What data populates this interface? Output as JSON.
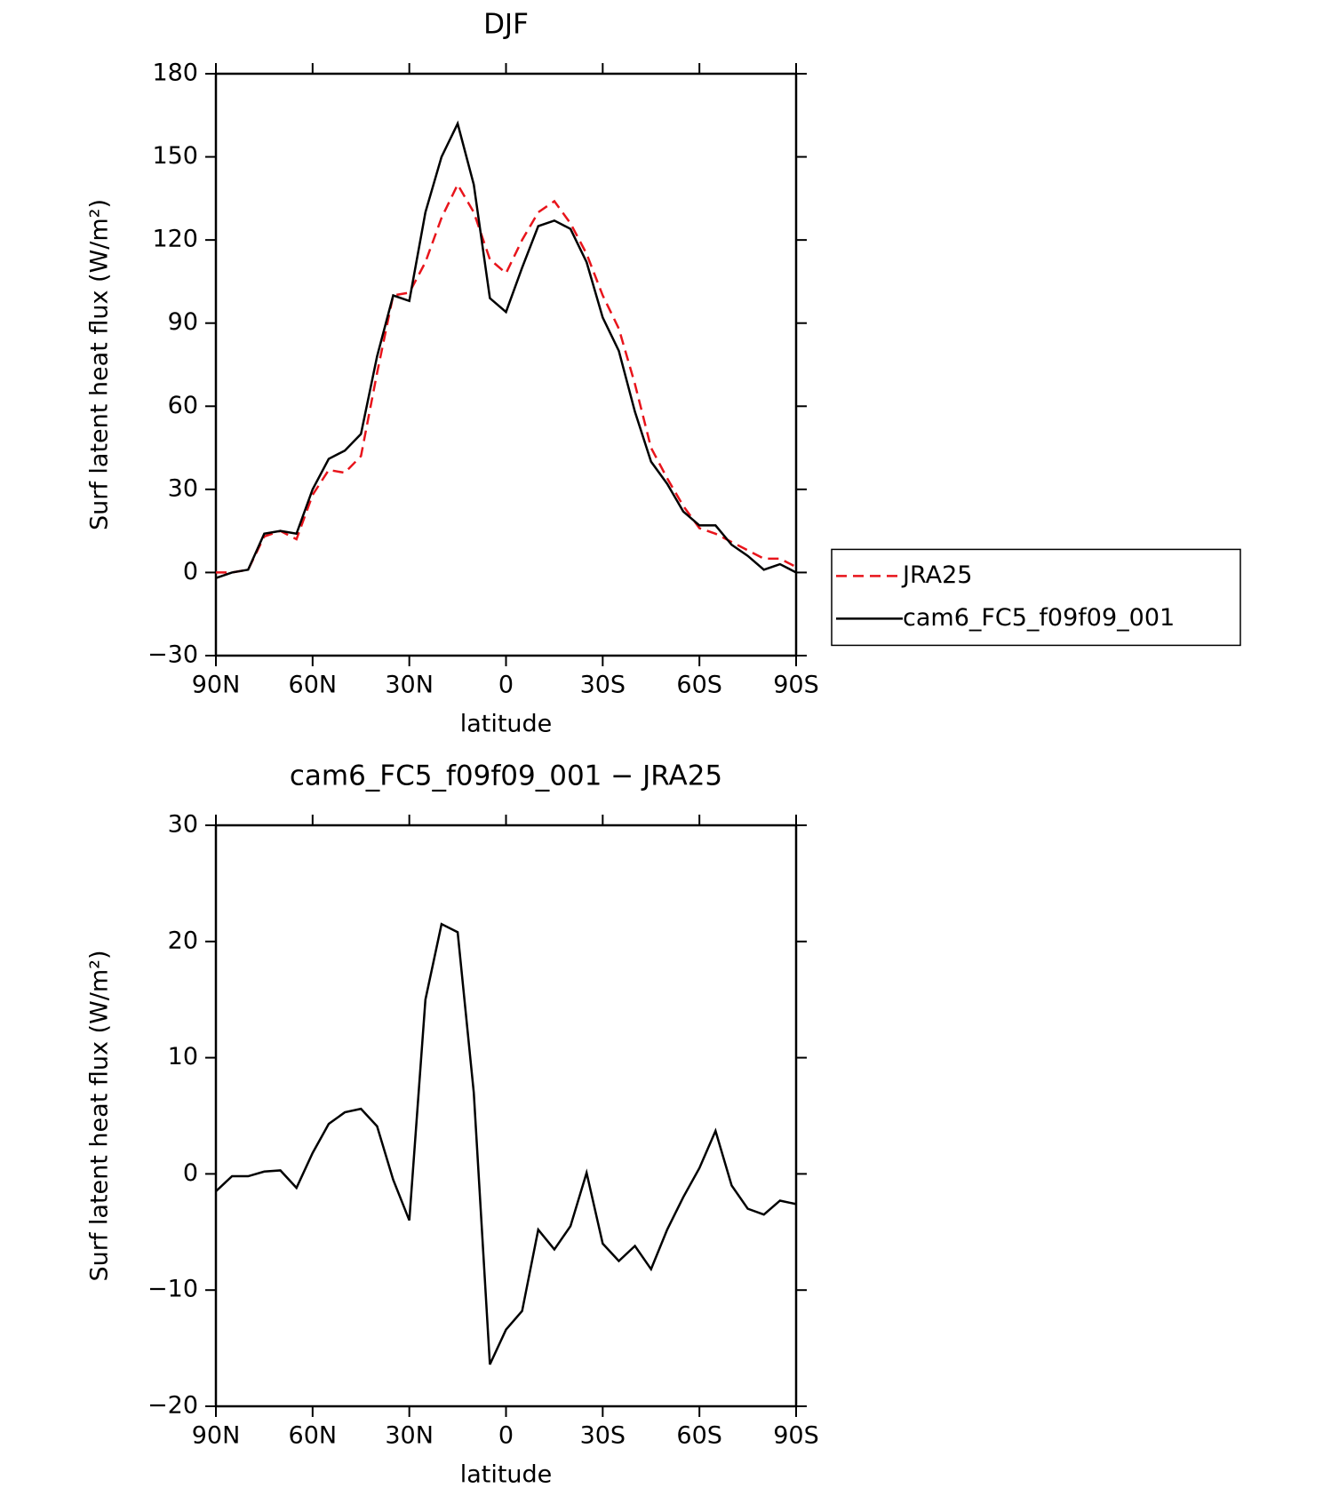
{
  "chart_data": [
    {
      "type": "line",
      "title": "DJF",
      "x_label": "latitude",
      "y_label": "Surf latent heat flux (W/m²)",
      "x": [
        90,
        85,
        80,
        75,
        70,
        65,
        60,
        55,
        50,
        45,
        40,
        35,
        30,
        25,
        20,
        15,
        10,
        5,
        0,
        -5,
        -10,
        -15,
        -20,
        -25,
        -30,
        -35,
        -40,
        -45,
        -50,
        -55,
        -60,
        -65,
        -70,
        -75,
        -80,
        -85,
        -90
      ],
      "series": [
        {
          "name": "JRA25",
          "color": "#e8141b",
          "dashed": true,
          "values": [
            0,
            0,
            1,
            13,
            15,
            12,
            28,
            37,
            36,
            42,
            72,
            100,
            101,
            112,
            128,
            140,
            130,
            113,
            108,
            120,
            130,
            134,
            126,
            115,
            100,
            88,
            68,
            45,
            34,
            24,
            16,
            14,
            11,
            8,
            5,
            5,
            2
          ]
        },
        {
          "name": "cam6_FC5_f09f09_001",
          "color": "#000000",
          "dashed": false,
          "values": [
            -2,
            0,
            1,
            14,
            15,
            14,
            30,
            41,
            44,
            50,
            78,
            100,
            98,
            130,
            150,
            162,
            140,
            99,
            94,
            110,
            125,
            127,
            124,
            112,
            92,
            80,
            58,
            40,
            32,
            22,
            17,
            17,
            10,
            6,
            1,
            3,
            0
          ]
        }
      ],
      "xlim": [
        90,
        -90
      ],
      "xticks": [
        {
          "value": 90,
          "label": "90N"
        },
        {
          "value": 60,
          "label": "60N"
        },
        {
          "value": 30,
          "label": "30N"
        },
        0,
        {
          "value": -30,
          "label": "30S"
        },
        {
          "value": -60,
          "label": "60S"
        },
        {
          "value": -90,
          "label": "90S"
        }
      ],
      "ylim": [
        -30,
        180
      ],
      "yticks": [
        {
          "value": -30,
          "label": "−30"
        },
        0,
        30,
        60,
        90,
        120,
        150,
        180
      ],
      "legend": "outside-right"
    },
    {
      "type": "line",
      "title": "cam6_FC5_f09f09_001 − JRA25",
      "x_label": "latitude",
      "y_label": "Surf latent heat flux (W/m²)",
      "x": [
        90,
        85,
        80,
        75,
        70,
        65,
        60,
        55,
        50,
        45,
        40,
        35,
        30,
        25,
        20,
        15,
        10,
        5,
        0,
        -5,
        -10,
        -15,
        -20,
        -25,
        -30,
        -35,
        -40,
        -45,
        -50,
        -55,
        -60,
        -65,
        -70,
        -75,
        -80,
        -85,
        -90
      ],
      "series": [
        {
          "color": "#000000",
          "dashed": false,
          "values": [
            -1.5,
            -0.2,
            -0.2,
            0.2,
            0.3,
            -1.2,
            1.8,
            4.3,
            5.3,
            5.6,
            4.1,
            -0.5,
            -4,
            15,
            21.5,
            20.8,
            7,
            -16.4,
            -13.4,
            -11.8,
            -4.8,
            -6.5,
            -4.5,
            0.1,
            -6,
            -7.5,
            -6.2,
            -8.2,
            -4.8,
            -2,
            0.5,
            3.7,
            -1,
            -3,
            -3.5,
            -2.3,
            -2.6
          ]
        }
      ],
      "xlim": [
        90,
        -90
      ],
      "xticks": [
        {
          "value": 90,
          "label": "90N"
        },
        {
          "value": 60,
          "label": "60N"
        },
        {
          "value": 30,
          "label": "30N"
        },
        0,
        {
          "value": -30,
          "label": "30S"
        },
        {
          "value": -60,
          "label": "60S"
        },
        {
          "value": -90,
          "label": "90S"
        }
      ],
      "ylim": [
        -20,
        30
      ],
      "yticks": [
        {
          "value": -20,
          "label": "−20"
        },
        {
          "value": -10,
          "label": "−10"
        },
        0,
        10,
        20,
        30
      ]
    }
  ]
}
